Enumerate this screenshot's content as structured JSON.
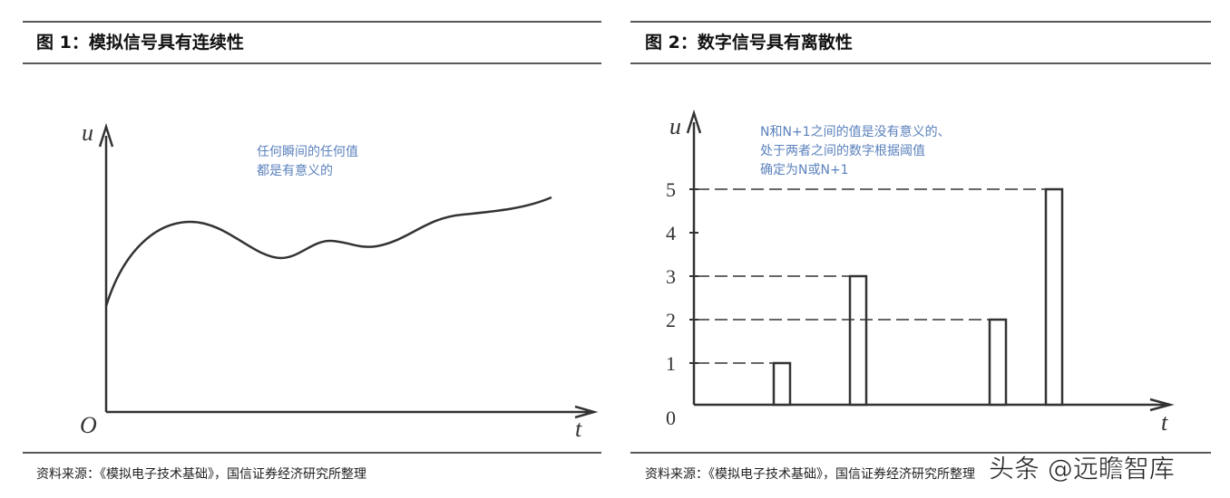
{
  "figure1": {
    "title": "图 1：模拟信号具有连续性",
    "y_label": "u",
    "origin_label": "O",
    "x_label": "t",
    "annotation": [
      "任何瞬间的任何值",
      "都是有意义的"
    ],
    "source": "资料来源：《模拟电子技术基础》，国信证券经济研究所整理"
  },
  "figure2": {
    "title": "图 2：数字信号具有离散性",
    "y_label": "u",
    "x_label": "t",
    "annotation": [
      "N和N+1之间的值是没有意义的、",
      "处于两者之间的数字根据阈值",
      "确定为N或N+1"
    ],
    "yticks": [
      0,
      1,
      2,
      3,
      4,
      5
    ],
    "values": [
      1,
      3,
      2,
      5
    ],
    "source": "资料来源：《模拟电子技术基础》，国信证券经济研究所整理"
  },
  "watermark": "头条 @远瞻智库"
}
